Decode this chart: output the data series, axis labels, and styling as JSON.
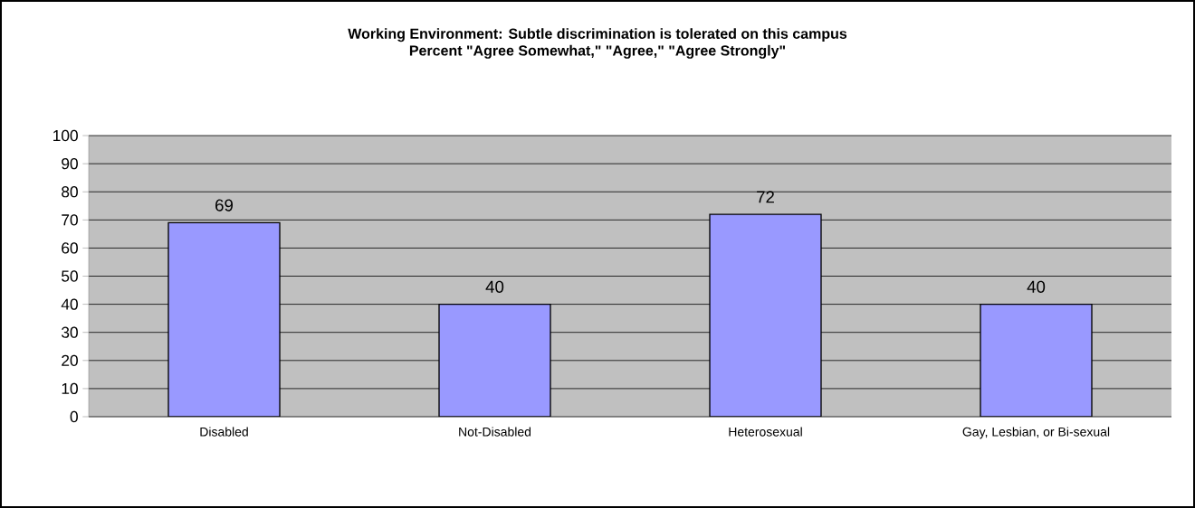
{
  "chart_data": {
    "type": "bar",
    "title": "Working Environment: Subtle discrimination is tolerated on this campus",
    "subtitle": "Percent \"Agree Somewhat,\" \"Agree,\" \"Agree Strongly\"",
    "categories": [
      "Disabled",
      "Not-Disabled",
      "Heterosexual",
      "Gay, Lesbian, or Bi-sexual"
    ],
    "values": [
      69,
      40,
      72,
      40
    ],
    "color": "#9999ff",
    "ylim": [
      0,
      100
    ],
    "yticks": [
      0,
      10,
      20,
      30,
      40,
      50,
      60,
      70,
      80,
      90,
      100
    ],
    "grid": "y",
    "data_labels": true
  }
}
